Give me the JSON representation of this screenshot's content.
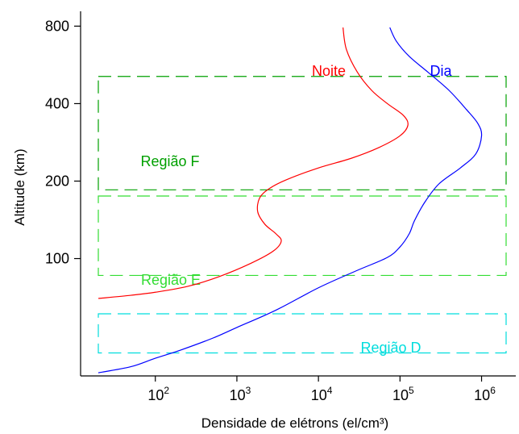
{
  "chart_data": {
    "type": "line",
    "xlabel": "Densidade de elétrons (el/cm³)",
    "ylabel": "Altitude (km)",
    "x_scale": "log",
    "y_scale": "log",
    "xlim": [
      20,
      2000000
    ],
    "ylim": [
      35,
      850
    ],
    "grid": false,
    "x_ticks": [
      {
        "value": 100,
        "base": "10",
        "exp": "2"
      },
      {
        "value": 1000,
        "base": "10",
        "exp": "3"
      },
      {
        "value": 10000,
        "base": "10",
        "exp": "4"
      },
      {
        "value": 100000,
        "base": "10",
        "exp": "5"
      },
      {
        "value": 1000000,
        "base": "10",
        "exp": "6"
      }
    ],
    "y_ticks": [
      {
        "value": 100,
        "label": "100"
      },
      {
        "value": 200,
        "label": "200"
      },
      {
        "value": 400,
        "label": "400"
      },
      {
        "value": 800,
        "label": "800"
      }
    ],
    "series": [
      {
        "name": "Noite",
        "color": "#ff0000",
        "points": [
          [
            20,
            70
          ],
          [
            50,
            72
          ],
          [
            100,
            74
          ],
          [
            250,
            78
          ],
          [
            600,
            85
          ],
          [
            1500,
            96
          ],
          [
            2800,
            107
          ],
          [
            3500,
            117
          ],
          [
            3000,
            125
          ],
          [
            2200,
            136
          ],
          [
            1800,
            152
          ],
          [
            1900,
            172
          ],
          [
            2500,
            187
          ],
          [
            4000,
            202
          ],
          [
            10000,
            225
          ],
          [
            25000,
            245
          ],
          [
            55000,
            270
          ],
          [
            100000,
            300
          ],
          [
            125000,
            330
          ],
          [
            110000,
            360
          ],
          [
            70000,
            400
          ],
          [
            45000,
            450
          ],
          [
            30000,
            530
          ],
          [
            22000,
            650
          ],
          [
            20000,
            790
          ]
        ]
      },
      {
        "name": "Dia",
        "color": "#0000ff",
        "points": [
          [
            20,
            36
          ],
          [
            50,
            38
          ],
          [
            100,
            41
          ],
          [
            200,
            44
          ],
          [
            500,
            49
          ],
          [
            1000,
            54
          ],
          [
            3000,
            63
          ],
          [
            10000,
            77
          ],
          [
            30000,
            90
          ],
          [
            70000,
            101
          ],
          [
            100000,
            111
          ],
          [
            130000,
            125
          ],
          [
            150000,
            140
          ],
          [
            200000,
            165
          ],
          [
            300000,
            195
          ],
          [
            550000,
            225
          ],
          [
            850000,
            255
          ],
          [
            1000000,
            300
          ],
          [
            900000,
            335
          ],
          [
            650000,
            380
          ],
          [
            400000,
            450
          ],
          [
            220000,
            530
          ],
          [
            130000,
            610
          ],
          [
            90000,
            700
          ],
          [
            75000,
            790
          ]
        ]
      }
    ],
    "regions": [
      {
        "name": "Região F",
        "color": "#00a000",
        "x_range": [
          20,
          2000000
        ],
        "y_range": [
          185,
          510
        ]
      },
      {
        "name": "Região E",
        "color": "#33dd33",
        "x_range": [
          20,
          2000000
        ],
        "y_range": [
          86,
          175
        ]
      },
      {
        "name": "Região D",
        "color": "#00dddd",
        "x_range": [
          20,
          2000000
        ],
        "y_range": [
          43,
          61
        ]
      }
    ]
  }
}
